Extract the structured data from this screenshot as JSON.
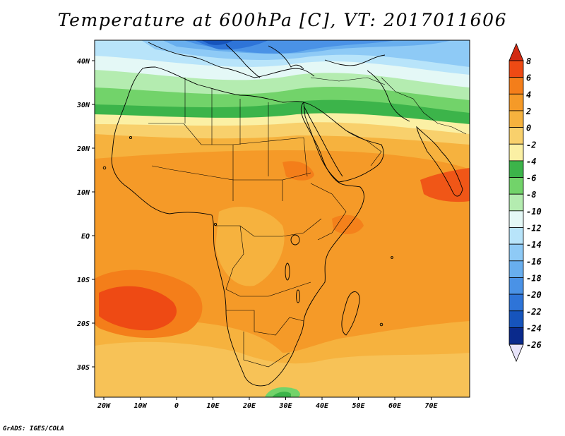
{
  "title": "Temperature at 600hPa [C], VT: 2017011606",
  "credit": "GrADS: IGES/COLA",
  "map": {
    "lon_ticks": [
      "20W",
      "10W",
      "0",
      "10E",
      "20E",
      "30E",
      "40E",
      "50E",
      "60E",
      "70E"
    ],
    "lat_ticks": [
      "40N",
      "30N",
      "20N",
      "10N",
      "EQ",
      "10S",
      "20S",
      "30S"
    ]
  },
  "colorbar": {
    "labels": [
      "8",
      "6",
      "4",
      "2",
      "0",
      "-2",
      "-4",
      "-6",
      "-8",
      "-10",
      "-12",
      "-14",
      "-16",
      "-18",
      "-20",
      "-22",
      "-24",
      "-26"
    ],
    "colors": {
      "above_8": "#d22a12",
      "6_8": "#ee4a14",
      "4_6": "#f47e1a",
      "2_4": "#f59a28",
      "0_2": "#f6b23e",
      "-2_0": "#f8d06c",
      "-4_-2": "#fbf0a4",
      "-6_-4": "#3cb44a",
      "-8_-6": "#72d36a",
      "-10_-8": "#b4ecb0",
      "-12_-10": "#e4f8f6",
      "-14_-12": "#b8e4fa",
      "-16_-14": "#8ecaf6",
      "-18_-16": "#68aeee",
      "-20_-18": "#4a92e6",
      "-22_-20": "#2e74d8",
      "-24_-22": "#1654bc",
      "-26_-24": "#0a2a8c",
      "below_-26": "#e8e4fa"
    }
  }
}
